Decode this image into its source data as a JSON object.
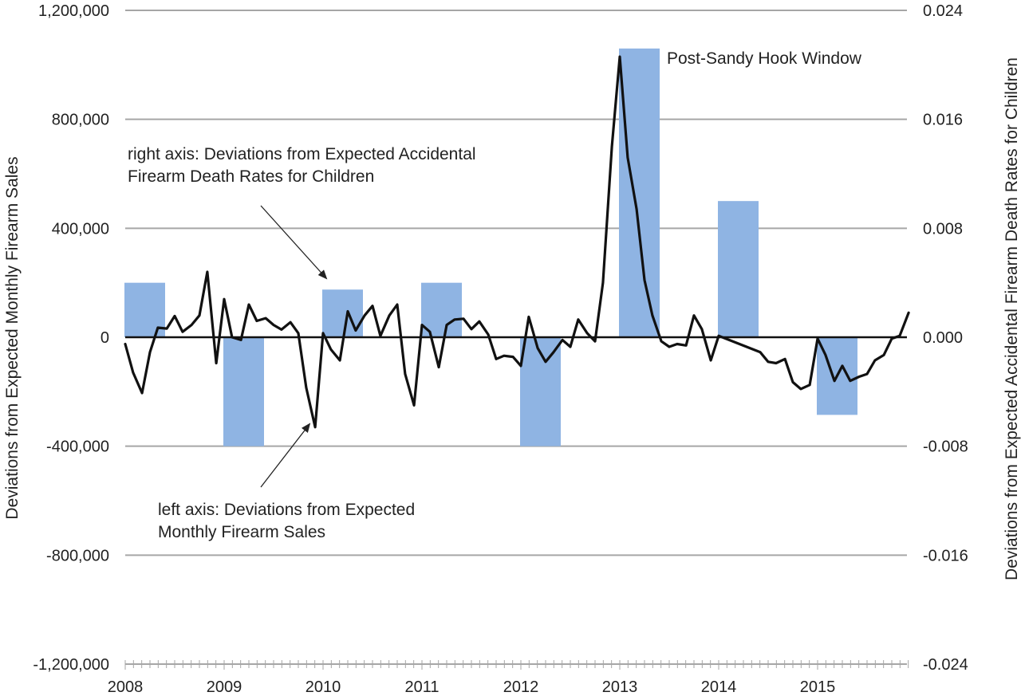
{
  "chart_data": {
    "type": "bar+line",
    "title": "",
    "x_tick_labels": [
      "2008",
      "2009",
      "2010",
      "2011",
      "2012",
      "2013",
      "2014",
      "2015"
    ],
    "left_axis": {
      "label": "Deviations from Expected Monthly Firearm Sales",
      "ylim": [
        -1200000,
        1200000
      ],
      "ticks": [
        1200000,
        800000,
        400000,
        0,
        -400000,
        -800000,
        -1200000
      ],
      "tick_labels": [
        "1,200,000",
        "800,000",
        "400,000",
        "0",
        "-400,000",
        "-800,000",
        "-1,200,000"
      ]
    },
    "right_axis": {
      "label": "Deviations from Expected Accidental Firearm Death Rates for Children",
      "ylim": [
        -0.024,
        0.024
      ],
      "ticks": [
        0.024,
        0.016,
        0.008,
        0.0,
        -0.008,
        -0.016,
        -0.024
      ],
      "tick_labels": [
        "0.024",
        "0.016",
        "0.008",
        "0.000",
        "-0.008",
        "-0.016",
        "-0.024"
      ]
    },
    "grid": true,
    "bar_series": {
      "axis": "right",
      "color": "#8fb4e3",
      "bars": [
        {
          "year": 2008.0,
          "value": 0.004
        },
        {
          "year": 2009.0,
          "value": -0.008
        },
        {
          "year": 2010.0,
          "value": 0.0035
        },
        {
          "year": 2011.0,
          "value": 0.004
        },
        {
          "year": 2012.0,
          "value": -0.008
        },
        {
          "year": 2013.0,
          "value": 0.0212
        },
        {
          "year": 2014.0,
          "value": 0.01
        },
        {
          "year": 2015.0,
          "value": -0.0057
        }
      ]
    },
    "line_series": {
      "axis": "left",
      "color": "#111111",
      "points": [
        {
          "x": 2008.0,
          "y": -25000
        },
        {
          "x": 2008.08,
          "y": -130000
        },
        {
          "x": 2008.17,
          "y": -205000
        },
        {
          "x": 2008.25,
          "y": -55000
        },
        {
          "x": 2008.33,
          "y": 35000
        },
        {
          "x": 2008.42,
          "y": 32000
        },
        {
          "x": 2008.5,
          "y": 78000
        },
        {
          "x": 2008.58,
          "y": 20000
        },
        {
          "x": 2008.67,
          "y": 45000
        },
        {
          "x": 2008.75,
          "y": 80000
        },
        {
          "x": 2008.83,
          "y": 240000
        },
        {
          "x": 2008.92,
          "y": -95000
        },
        {
          "x": 2009.0,
          "y": 140000
        },
        {
          "x": 2009.08,
          "y": 0
        },
        {
          "x": 2009.17,
          "y": -10000
        },
        {
          "x": 2009.25,
          "y": 120000
        },
        {
          "x": 2009.33,
          "y": 60000
        },
        {
          "x": 2009.42,
          "y": 70000
        },
        {
          "x": 2009.5,
          "y": 45000
        },
        {
          "x": 2009.58,
          "y": 28000
        },
        {
          "x": 2009.67,
          "y": 55000
        },
        {
          "x": 2009.75,
          "y": 15000
        },
        {
          "x": 2009.83,
          "y": -185000
        },
        {
          "x": 2009.92,
          "y": -330000
        },
        {
          "x": 2010.0,
          "y": 15000
        },
        {
          "x": 2010.08,
          "y": -45000
        },
        {
          "x": 2010.17,
          "y": -85000
        },
        {
          "x": 2010.25,
          "y": 95000
        },
        {
          "x": 2010.33,
          "y": 25000
        },
        {
          "x": 2010.42,
          "y": 80000
        },
        {
          "x": 2010.5,
          "y": 115000
        },
        {
          "x": 2010.58,
          "y": 5000
        },
        {
          "x": 2010.67,
          "y": 80000
        },
        {
          "x": 2010.75,
          "y": 120000
        },
        {
          "x": 2010.83,
          "y": -135000
        },
        {
          "x": 2010.92,
          "y": -250000
        },
        {
          "x": 2011.0,
          "y": 45000
        },
        {
          "x": 2011.08,
          "y": 20000
        },
        {
          "x": 2011.17,
          "y": -110000
        },
        {
          "x": 2011.25,
          "y": 45000
        },
        {
          "x": 2011.33,
          "y": 65000
        },
        {
          "x": 2011.42,
          "y": 68000
        },
        {
          "x": 2011.5,
          "y": 30000
        },
        {
          "x": 2011.58,
          "y": 58000
        },
        {
          "x": 2011.67,
          "y": 10000
        },
        {
          "x": 2011.75,
          "y": -80000
        },
        {
          "x": 2011.83,
          "y": -68000
        },
        {
          "x": 2011.92,
          "y": -72000
        },
        {
          "x": 2012.0,
          "y": -105000
        },
        {
          "x": 2012.08,
          "y": 75000
        },
        {
          "x": 2012.17,
          "y": -40000
        },
        {
          "x": 2012.25,
          "y": -90000
        },
        {
          "x": 2012.33,
          "y": -55000
        },
        {
          "x": 2012.42,
          "y": -10000
        },
        {
          "x": 2012.5,
          "y": -35000
        },
        {
          "x": 2012.58,
          "y": 65000
        },
        {
          "x": 2012.67,
          "y": 15000
        },
        {
          "x": 2012.75,
          "y": -15000
        },
        {
          "x": 2012.83,
          "y": 200000
        },
        {
          "x": 2012.92,
          "y": 700000
        },
        {
          "x": 2013.0,
          "y": 1030000
        },
        {
          "x": 2013.08,
          "y": 660000
        },
        {
          "x": 2013.17,
          "y": 470000
        },
        {
          "x": 2013.25,
          "y": 210000
        },
        {
          "x": 2013.33,
          "y": 80000
        },
        {
          "x": 2013.42,
          "y": -15000
        },
        {
          "x": 2013.5,
          "y": -35000
        },
        {
          "x": 2013.58,
          "y": -25000
        },
        {
          "x": 2013.67,
          "y": -30000
        },
        {
          "x": 2013.75,
          "y": 80000
        },
        {
          "x": 2013.83,
          "y": 30000
        },
        {
          "x": 2013.92,
          "y": -85000
        },
        {
          "x": 2014.0,
          "y": 5000
        },
        {
          "x": 2014.42,
          "y": -55000
        },
        {
          "x": 2014.5,
          "y": -90000
        },
        {
          "x": 2014.58,
          "y": -95000
        },
        {
          "x": 2014.67,
          "y": -80000
        },
        {
          "x": 2014.75,
          "y": -165000
        },
        {
          "x": 2014.83,
          "y": -190000
        },
        {
          "x": 2014.92,
          "y": -175000
        },
        {
          "x": 2015.0,
          "y": -5000
        },
        {
          "x": 2015.08,
          "y": -65000
        },
        {
          "x": 2015.17,
          "y": -160000
        },
        {
          "x": 2015.25,
          "y": -105000
        },
        {
          "x": 2015.33,
          "y": -160000
        },
        {
          "x": 2015.42,
          "y": -145000
        },
        {
          "x": 2015.5,
          "y": -135000
        },
        {
          "x": 2015.58,
          "y": -85000
        },
        {
          "x": 2015.67,
          "y": -65000
        },
        {
          "x": 2015.75,
          "y": -5000
        },
        {
          "x": 2015.83,
          "y": 5000
        },
        {
          "x": 2015.92,
          "y": 90000
        }
      ]
    },
    "annotations": {
      "post_sandy_hook": "Post-Sandy Hook Window",
      "right_axis_note": [
        "right axis: Deviations from Expected Accidental",
        "Firearm Death Rates for Children"
      ],
      "left_axis_note": [
        "left axis: Deviations from Expected",
        "Monthly Firearm Sales"
      ]
    }
  }
}
